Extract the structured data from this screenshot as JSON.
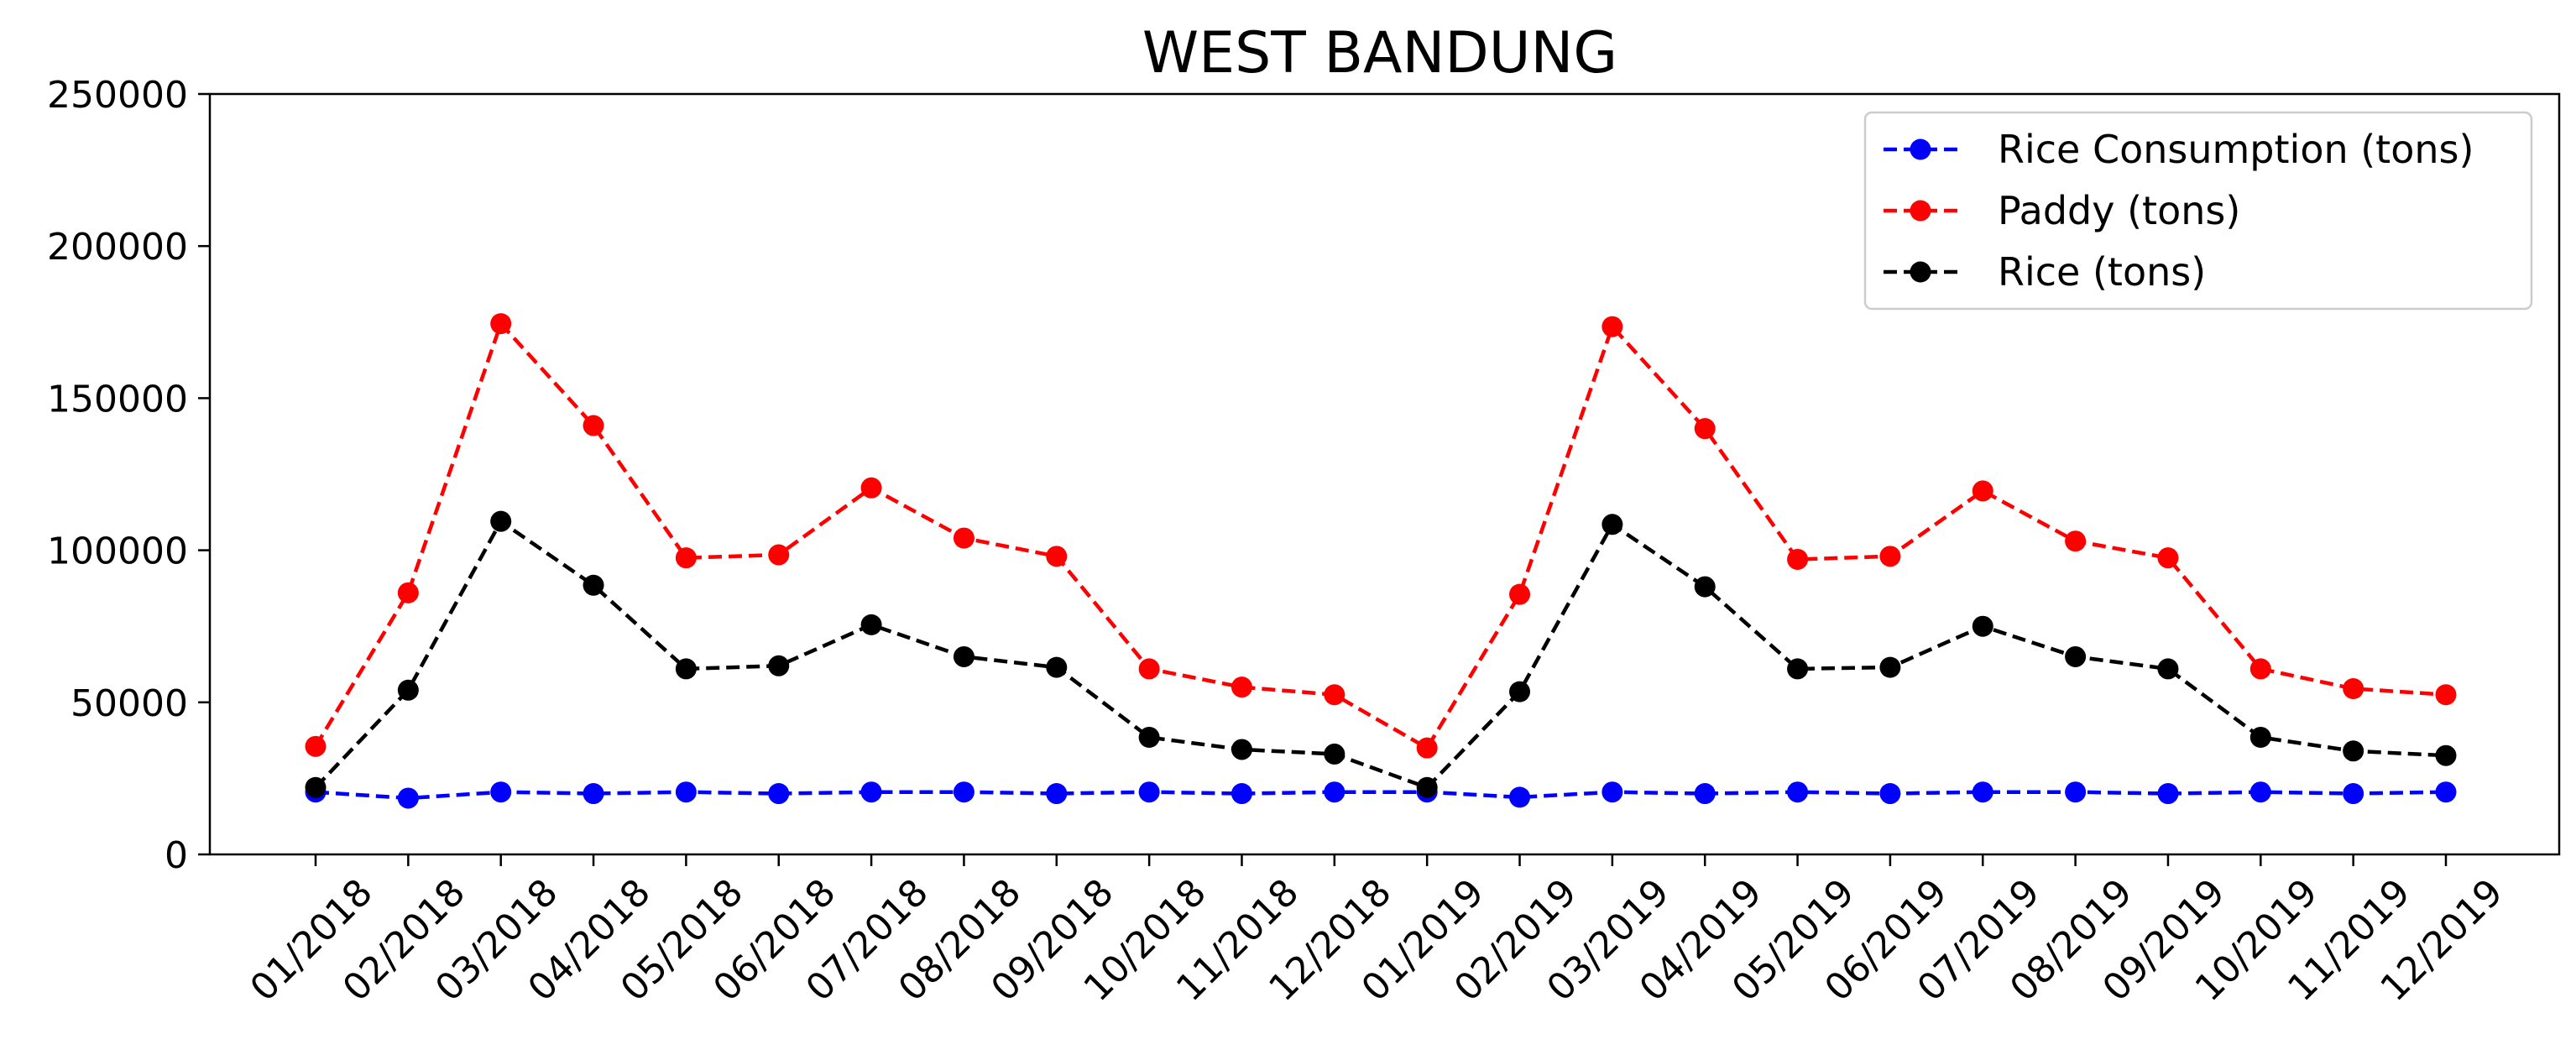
{
  "chart_data": {
    "type": "line",
    "title": "WEST BANDUNG",
    "xlabel": "",
    "ylabel": "",
    "ylim": [
      0,
      250000
    ],
    "yticks": [
      "0",
      "50000",
      "100000",
      "150000",
      "200000",
      "250000"
    ],
    "grid": false,
    "legend_position": "top-right",
    "categories": [
      "01/2018",
      "02/2018",
      "03/2018",
      "04/2018",
      "05/2018",
      "06/2018",
      "07/2018",
      "08/2018",
      "09/2018",
      "10/2018",
      "11/2018",
      "12/2018",
      "01/2019",
      "02/2019",
      "03/2019",
      "04/2019",
      "05/2019",
      "06/2019",
      "07/2019",
      "08/2019",
      "09/2019",
      "10/2019",
      "11/2019",
      "12/2019"
    ],
    "series": [
      {
        "name": "Rice Consumption (tons)",
        "color": "#0000ff",
        "values": [
          20500,
          18500,
          20500,
          20000,
          20500,
          20000,
          20500,
          20500,
          20000,
          20500,
          20000,
          20500,
          20500,
          18800,
          20500,
          20000,
          20500,
          20000,
          20500,
          20500,
          20000,
          20500,
          20000,
          20500
        ]
      },
      {
        "name": "Paddy (tons)",
        "color": "#ff0000",
        "values": [
          35500,
          86000,
          174500,
          141000,
          97500,
          98500,
          120500,
          104000,
          98000,
          61000,
          55000,
          52500,
          35000,
          85500,
          173500,
          140000,
          97000,
          98000,
          119500,
          103000,
          97500,
          61000,
          54500,
          52500
        ]
      },
      {
        "name": "Rice (tons)",
        "color": "#000000",
        "values": [
          22000,
          54000,
          109500,
          88500,
          61000,
          62000,
          75500,
          65000,
          61500,
          38500,
          34500,
          33000,
          22000,
          53500,
          108500,
          88000,
          61000,
          61500,
          75000,
          65000,
          61000,
          38500,
          34000,
          32500
        ]
      }
    ]
  }
}
